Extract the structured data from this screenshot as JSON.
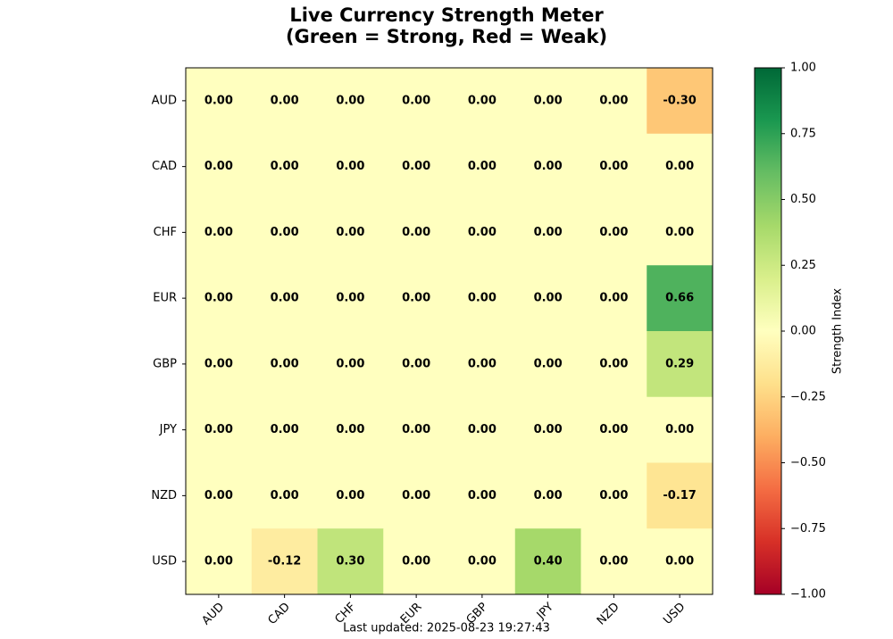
{
  "chart_data": {
    "type": "heatmap",
    "title": [
      "Live Currency Strength Meter",
      "(Green = Strong, Red = Weak)"
    ],
    "x_categories": [
      "AUD",
      "CAD",
      "CHF",
      "EUR",
      "GBP",
      "JPY",
      "NZD",
      "USD"
    ],
    "y_categories": [
      "AUD",
      "CAD",
      "CHF",
      "EUR",
      "GBP",
      "JPY",
      "NZD",
      "USD"
    ],
    "values": [
      [
        0,
        0,
        0,
        0,
        0,
        0,
        0,
        -0.3
      ],
      [
        0,
        0,
        0,
        0,
        0,
        0,
        0,
        0
      ],
      [
        0,
        0,
        0,
        0,
        0,
        0,
        0,
        0
      ],
      [
        0,
        0,
        0,
        0,
        0,
        0,
        0,
        0.66
      ],
      [
        0,
        0,
        0,
        0,
        0,
        0,
        0,
        0.29
      ],
      [
        0,
        0,
        0,
        0,
        0,
        0,
        0,
        0
      ],
      [
        0,
        0,
        0,
        0,
        0,
        0,
        0,
        -0.17
      ],
      [
        0,
        -0.12,
        0.3,
        0,
        0,
        0.4,
        0,
        0
      ]
    ],
    "value_labels": [
      [
        "0.00",
        "0.00",
        "0.00",
        "0.00",
        "0.00",
        "0.00",
        "0.00",
        "-0.30"
      ],
      [
        "0.00",
        "0.00",
        "0.00",
        "0.00",
        "0.00",
        "0.00",
        "0.00",
        "0.00"
      ],
      [
        "0.00",
        "0.00",
        "0.00",
        "0.00",
        "0.00",
        "0.00",
        "0.00",
        "0.00"
      ],
      [
        "0.00",
        "0.00",
        "0.00",
        "0.00",
        "0.00",
        "0.00",
        "0.00",
        "0.66"
      ],
      [
        "0.00",
        "0.00",
        "0.00",
        "0.00",
        "0.00",
        "0.00",
        "0.00",
        "0.29"
      ],
      [
        "0.00",
        "0.00",
        "0.00",
        "0.00",
        "0.00",
        "0.00",
        "0.00",
        "0.00"
      ],
      [
        "0.00",
        "0.00",
        "0.00",
        "0.00",
        "0.00",
        "0.00",
        "0.00",
        "-0.17"
      ],
      [
        "0.00",
        "-0.12",
        "0.30",
        "0.00",
        "0.00",
        "0.40",
        "0.00",
        "0.00"
      ]
    ],
    "colormap": [
      "#a50026",
      "#d73027",
      "#f46d43",
      "#fdae61",
      "#fee08b",
      "#ffffbf",
      "#d9ef8b",
      "#a6d96a",
      "#66bd63",
      "#1a9850",
      "#006837"
    ],
    "clim": [
      -1,
      1
    ],
    "cticks": [
      {
        "value": -1,
        "label": "−1.00"
      },
      {
        "value": -0.75,
        "label": "−0.75"
      },
      {
        "value": -0.5,
        "label": "−0.50"
      },
      {
        "value": -0.25,
        "label": "−0.25"
      },
      {
        "value": 0,
        "label": "0.00"
      },
      {
        "value": 0.25,
        "label": "0.25"
      },
      {
        "value": 0.5,
        "label": "0.50"
      },
      {
        "value": 0.75,
        "label": "0.75"
      },
      {
        "value": 1,
        "label": "1.00"
      }
    ],
    "colorbar_label": "Strength Index",
    "footer": "Last updated: 2025-08-23 19:27:43"
  }
}
